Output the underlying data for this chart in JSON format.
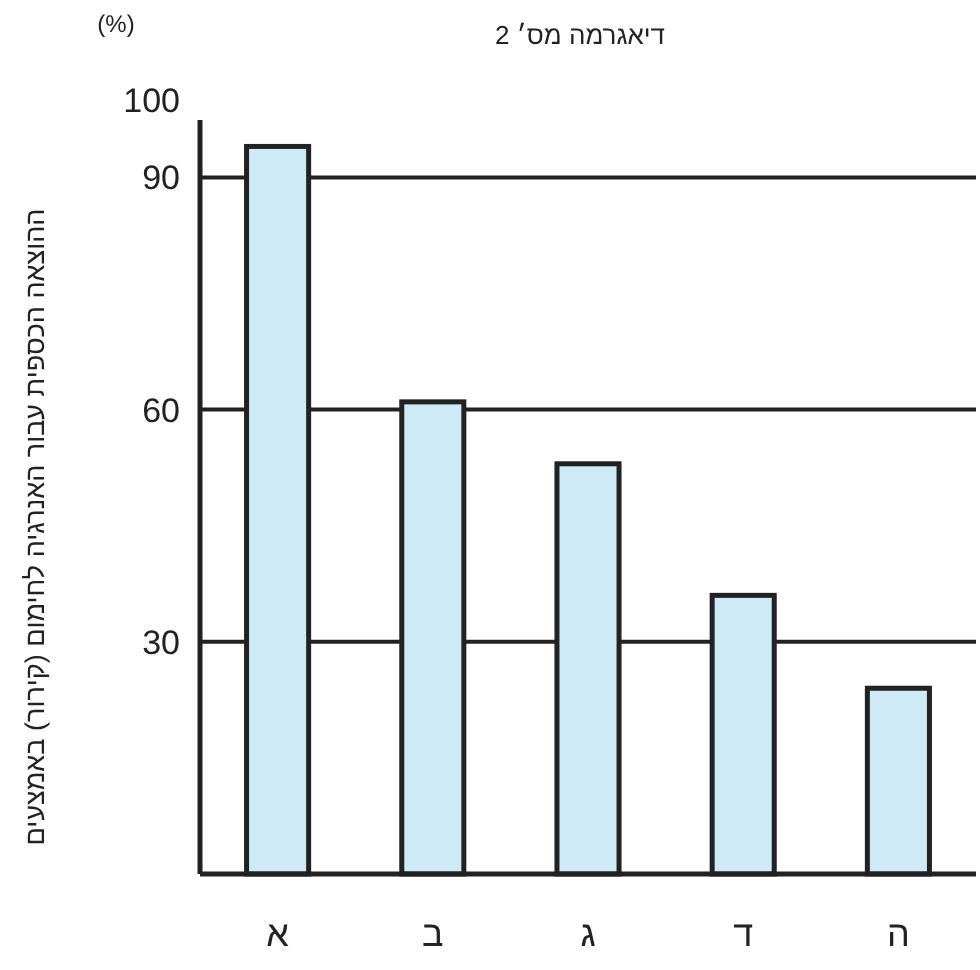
{
  "chart_data": {
    "type": "bar",
    "title": "דיאגרמה מס׳ 2",
    "ylabel": "ההוצאה הכספית עבור האנרגיה לחימום (קירור) באמצעים",
    "annotations": [
      "(%)"
    ],
    "categories": [
      "א",
      "ב",
      "ג",
      "ד",
      "ה"
    ],
    "values": [
      94,
      61,
      53,
      36,
      24
    ],
    "color": "#cdeaf6",
    "ylim": [
      0,
      100
    ],
    "yticks": [
      30,
      60,
      90,
      100
    ],
    "grid": "y"
  }
}
